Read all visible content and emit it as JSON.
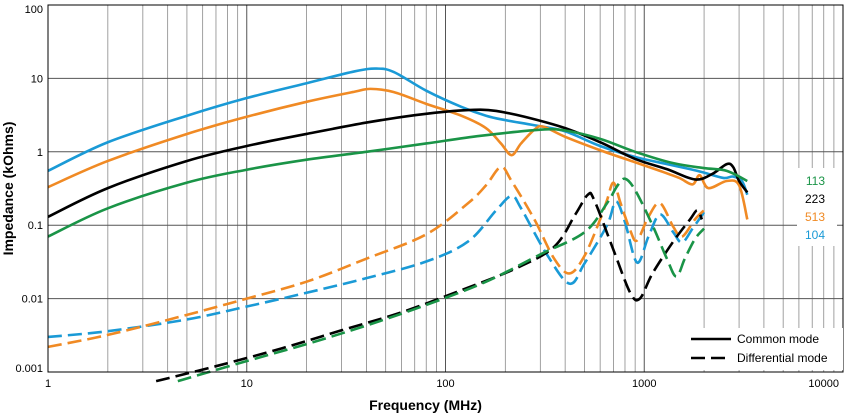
{
  "chart_data": {
    "type": "line",
    "xlabel": "Frequency (MHz)",
    "ylabel": "Impedance (kOhms)",
    "xscale": "log",
    "yscale": "log",
    "xlim": [
      1,
      10000
    ],
    "ylim": [
      0.001,
      100
    ],
    "grid": true,
    "x_tick_labels": [
      "1",
      "10",
      "100",
      "1000",
      "10000"
    ],
    "y_tick_labels": [
      "0.001",
      "0.01",
      "0.1",
      "1",
      "10",
      "100"
    ],
    "x_tick_values": [
      1,
      10,
      100,
      1000,
      10000
    ],
    "y_tick_values": [
      0.001,
      0.01,
      0.1,
      1,
      10,
      100
    ],
    "legend": {
      "placement": "bottom-right",
      "entries": [
        {
          "label": "Common mode",
          "dash": "solid"
        },
        {
          "label": "Differential mode",
          "dash": "dashed"
        }
      ]
    },
    "part_labels": [
      {
        "text": "113",
        "color": "#1a9447"
      },
      {
        "text": "223",
        "color": "#000000"
      },
      {
        "text": "513",
        "color": "#f08a24"
      },
      {
        "text": "104",
        "color": "#1a9ad6"
      }
    ],
    "series": [
      {
        "part": "104",
        "mode": "Common mode",
        "color": "#1a9ad6",
        "dash": "solid",
        "points": [
          [
            1,
            0.55
          ],
          [
            2,
            1.35
          ],
          [
            5,
            3.1
          ],
          [
            10,
            5.4
          ],
          [
            20,
            8.6
          ],
          [
            35,
            12.5
          ],
          [
            45,
            13.6
          ],
          [
            55,
            12.2
          ],
          [
            80,
            6.8
          ],
          [
            120,
            4.1
          ],
          [
            160,
            3.1
          ],
          [
            200,
            2.7
          ],
          [
            280,
            2.3
          ],
          [
            400,
            1.9
          ],
          [
            600,
            1.2
          ],
          [
            900,
            0.85
          ],
          [
            1300,
            0.68
          ],
          [
            1700,
            0.58
          ],
          [
            2000,
            0.52
          ],
          [
            2500,
            0.44
          ],
          [
            2800,
            0.46
          ],
          [
            3100,
            0.4
          ],
          [
            3300,
            0.26
          ]
        ]
      },
      {
        "part": "513",
        "mode": "Common mode",
        "color": "#f08a24",
        "dash": "solid",
        "points": [
          [
            1,
            0.33
          ],
          [
            2,
            0.75
          ],
          [
            5,
            1.75
          ],
          [
            10,
            3.0
          ],
          [
            20,
            4.8
          ],
          [
            35,
            6.6
          ],
          [
            42,
            7.2
          ],
          [
            55,
            6.5
          ],
          [
            80,
            4.5
          ],
          [
            120,
            3.1
          ],
          [
            160,
            2.1
          ],
          [
            190,
            1.3
          ],
          [
            215,
            0.9
          ],
          [
            240,
            1.3
          ],
          [
            280,
            2.0
          ],
          [
            310,
            2.2
          ],
          [
            400,
            1.6
          ],
          [
            600,
            1.05
          ],
          [
            900,
            0.72
          ],
          [
            1200,
            0.55
          ],
          [
            1500,
            0.44
          ],
          [
            1750,
            0.36
          ],
          [
            1900,
            0.48
          ],
          [
            2100,
            0.32
          ],
          [
            2600,
            0.4
          ],
          [
            3000,
            0.35
          ],
          [
            3300,
            0.12
          ]
        ]
      },
      {
        "part": "223",
        "mode": "Common mode",
        "color": "#000000",
        "dash": "solid",
        "points": [
          [
            1,
            0.13
          ],
          [
            2,
            0.32
          ],
          [
            5,
            0.75
          ],
          [
            10,
            1.2
          ],
          [
            20,
            1.75
          ],
          [
            40,
            2.5
          ],
          [
            70,
            3.15
          ],
          [
            110,
            3.6
          ],
          [
            150,
            3.75
          ],
          [
            180,
            3.6
          ],
          [
            250,
            3.0
          ],
          [
            400,
            2.1
          ],
          [
            600,
            1.35
          ],
          [
            900,
            0.8
          ],
          [
            1300,
            0.58
          ],
          [
            1800,
            0.42
          ],
          [
            2200,
            0.5
          ],
          [
            2600,
            0.68
          ],
          [
            2800,
            0.62
          ],
          [
            3000,
            0.4
          ],
          [
            3300,
            0.28
          ]
        ]
      },
      {
        "part": "113",
        "mode": "Common mode",
        "color": "#1a9447",
        "dash": "solid",
        "points": [
          [
            1,
            0.07
          ],
          [
            2,
            0.17
          ],
          [
            5,
            0.38
          ],
          [
            10,
            0.57
          ],
          [
            20,
            0.78
          ],
          [
            40,
            1.0
          ],
          [
            80,
            1.3
          ],
          [
            150,
            1.65
          ],
          [
            300,
            2.0
          ],
          [
            400,
            1.95
          ],
          [
            600,
            1.5
          ],
          [
            900,
            1.0
          ],
          [
            1400,
            0.7
          ],
          [
            2000,
            0.6
          ],
          [
            2600,
            0.55
          ],
          [
            3300,
            0.4
          ]
        ]
      },
      {
        "part": "104",
        "mode": "Differential mode",
        "color": "#1a9ad6",
        "dash": "dashed",
        "points": [
          [
            1,
            0.003
          ],
          [
            2,
            0.0036
          ],
          [
            5,
            0.0052
          ],
          [
            10,
            0.0078
          ],
          [
            20,
            0.012
          ],
          [
            40,
            0.019
          ],
          [
            80,
            0.032
          ],
          [
            130,
            0.06
          ],
          [
            180,
            0.16
          ],
          [
            215,
            0.25
          ],
          [
            240,
            0.17
          ],
          [
            320,
            0.042
          ],
          [
            420,
            0.016
          ],
          [
            500,
            0.03
          ],
          [
            650,
            0.1
          ],
          [
            720,
            0.21
          ],
          [
            800,
            0.11
          ],
          [
            920,
            0.031
          ],
          [
            1050,
            0.07
          ],
          [
            1200,
            0.14
          ],
          [
            1400,
            0.08
          ],
          [
            1550,
            0.058
          ],
          [
            1750,
            0.09
          ],
          [
            2000,
            0.15
          ]
        ]
      },
      {
        "part": "513",
        "mode": "Differential mode",
        "color": "#f08a24",
        "dash": "dashed",
        "points": [
          [
            1,
            0.0022
          ],
          [
            2,
            0.0032
          ],
          [
            5,
            0.006
          ],
          [
            10,
            0.01
          ],
          [
            20,
            0.017
          ],
          [
            40,
            0.035
          ],
          [
            80,
            0.075
          ],
          [
            130,
            0.2
          ],
          [
            160,
            0.35
          ],
          [
            190,
            0.62
          ],
          [
            215,
            0.4
          ],
          [
            280,
            0.12
          ],
          [
            350,
            0.036
          ],
          [
            420,
            0.022
          ],
          [
            500,
            0.038
          ],
          [
            600,
            0.12
          ],
          [
            650,
            0.22
          ],
          [
            700,
            0.38
          ],
          [
            760,
            0.2
          ],
          [
            850,
            0.085
          ],
          [
            920,
            0.062
          ],
          [
            1050,
            0.13
          ],
          [
            1200,
            0.2
          ],
          [
            1400,
            0.095
          ],
          [
            1550,
            0.07
          ],
          [
            1800,
            0.12
          ],
          [
            2000,
            0.16
          ]
        ]
      },
      {
        "part": "223",
        "mode": "Differential mode",
        "color": "#000000",
        "dash": "dashed",
        "points": [
          [
            3.5,
            0.00075
          ],
          [
            7,
            0.0012
          ],
          [
            15,
            0.0021
          ],
          [
            30,
            0.0037
          ],
          [
            60,
            0.0065
          ],
          [
            120,
            0.013
          ],
          [
            220,
            0.025
          ],
          [
            350,
            0.05
          ],
          [
            450,
            0.14
          ],
          [
            520,
            0.26
          ],
          [
            560,
            0.22
          ],
          [
            700,
            0.046
          ],
          [
            850,
            0.012
          ],
          [
            950,
            0.01
          ],
          [
            1100,
            0.022
          ],
          [
            1400,
            0.06
          ],
          [
            1700,
            0.12
          ],
          [
            1850,
            0.16
          ],
          [
            1950,
            0.12
          ]
        ]
      },
      {
        "part": "113",
        "mode": "Differential mode",
        "color": "#1a9447",
        "dash": "dashed",
        "points": [
          [
            4.5,
            0.00075
          ],
          [
            9,
            0.0013
          ],
          [
            20,
            0.0024
          ],
          [
            40,
            0.0043
          ],
          [
            80,
            0.0082
          ],
          [
            160,
            0.017
          ],
          [
            300,
            0.04
          ],
          [
            500,
            0.08
          ],
          [
            650,
            0.2
          ],
          [
            730,
            0.34
          ],
          [
            800,
            0.43
          ],
          [
            900,
            0.3
          ],
          [
            1100,
            0.1
          ],
          [
            1300,
            0.035
          ],
          [
            1450,
            0.02
          ],
          [
            1600,
            0.035
          ],
          [
            1800,
            0.065
          ],
          [
            2000,
            0.09
          ]
        ]
      }
    ]
  }
}
